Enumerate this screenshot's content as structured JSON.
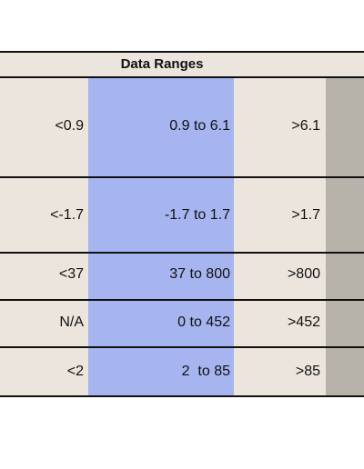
{
  "table": {
    "title": "Data Ranges",
    "rows": [
      {
        "low": "<0.9",
        "mid": "0.9 to 6.1",
        "high": ">6.1"
      },
      {
        "low": "<-1.7",
        "mid": "-1.7 to 1.7",
        "high": ">1.7"
      },
      {
        "low": "<37",
        "mid": "37 to 800",
        "high": ">800"
      },
      {
        "low": "N/A",
        "mid": "0 to 452",
        "high": ">452"
      },
      {
        "low": "<2",
        "mid": "2  to 85",
        "high": ">85"
      }
    ]
  },
  "colors": {
    "background": "#ebe5dd",
    "mid_column": "#a6b4ef",
    "right_column": "#b7b2aa",
    "border": "#111111"
  }
}
